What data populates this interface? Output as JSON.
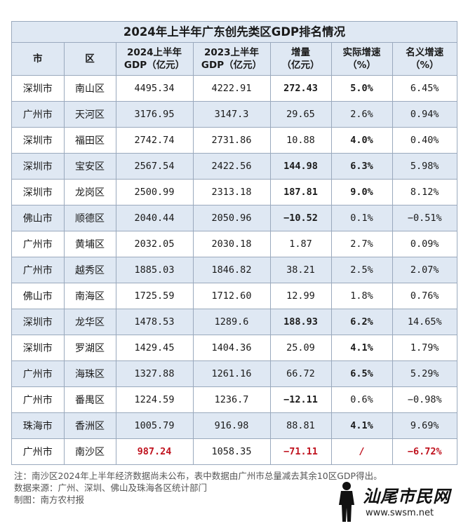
{
  "title": "2024年上半年广东创先类区GDP排名情况",
  "headers": {
    "city": "市",
    "district": "区",
    "gdp2024": [
      "2024上半年",
      "GDP（亿元）"
    ],
    "gdp2023": [
      "2023上半年",
      "GDP（亿元）"
    ],
    "increase": [
      "增量",
      "（亿元）"
    ],
    "real_growth": [
      "实际增速",
      "（%）"
    ],
    "nominal_growth": [
      "名义增速",
      "（%）"
    ]
  },
  "rows": [
    {
      "city": "深圳市",
      "district": "南山区",
      "gdp2024": "4495.34",
      "gdp2023": "4222.91",
      "increase": "272.43",
      "real": "5.0%",
      "nominal": "6.45%",
      "inc_bold": true,
      "real_bold": true
    },
    {
      "city": "广州市",
      "district": "天河区",
      "gdp2024": "3176.95",
      "gdp2023": "3147.3",
      "increase": "29.65",
      "real": "2.6%",
      "nominal": "0.94%"
    },
    {
      "city": "深圳市",
      "district": "福田区",
      "gdp2024": "2742.74",
      "gdp2023": "2731.86",
      "increase": "10.88",
      "real": "4.0%",
      "nominal": "0.40%",
      "real_bold": true
    },
    {
      "city": "深圳市",
      "district": "宝安区",
      "gdp2024": "2567.54",
      "gdp2023": "2422.56",
      "increase": "144.98",
      "real": "6.3%",
      "nominal": "5.98%",
      "inc_bold": true,
      "real_bold": true
    },
    {
      "city": "深圳市",
      "district": "龙岗区",
      "gdp2024": "2500.99",
      "gdp2023": "2313.18",
      "increase": "187.81",
      "real": "9.0%",
      "nominal": "8.12%",
      "inc_bold": true,
      "real_bold": true
    },
    {
      "city": "佛山市",
      "district": "顺德区",
      "gdp2024": "2040.44",
      "gdp2023": "2050.96",
      "increase": "−10.52",
      "real": "0.1%",
      "nominal": "−0.51%",
      "inc_bold": true
    },
    {
      "city": "广州市",
      "district": "黄埔区",
      "gdp2024": "2032.05",
      "gdp2023": "2030.18",
      "increase": "1.87",
      "real": "2.7%",
      "nominal": "0.09%"
    },
    {
      "city": "广州市",
      "district": "越秀区",
      "gdp2024": "1885.03",
      "gdp2023": "1846.82",
      "increase": "38.21",
      "real": "2.5%",
      "nominal": "2.07%"
    },
    {
      "city": "佛山市",
      "district": "南海区",
      "gdp2024": "1725.59",
      "gdp2023": "1712.60",
      "increase": "12.99",
      "real": "1.8%",
      "nominal": "0.76%"
    },
    {
      "city": "深圳市",
      "district": "龙华区",
      "gdp2024": "1478.53",
      "gdp2023": "1289.6",
      "increase": "188.93",
      "real": "6.2%",
      "nominal": "14.65%",
      "inc_bold": true,
      "real_bold": true
    },
    {
      "city": "深圳市",
      "district": "罗湖区",
      "gdp2024": "1429.45",
      "gdp2023": "1404.36",
      "increase": "25.09",
      "real": "4.1%",
      "nominal": "1.79%",
      "real_bold": true
    },
    {
      "city": "广州市",
      "district": "海珠区",
      "gdp2024": "1327.88",
      "gdp2023": "1261.16",
      "increase": "66.72",
      "real": "6.5%",
      "nominal": "5.29%",
      "real_bold": true
    },
    {
      "city": "广州市",
      "district": "番禺区",
      "gdp2024": "1224.59",
      "gdp2023": "1236.7",
      "increase": "−12.11",
      "real": "0.6%",
      "nominal": "−0.98%",
      "inc_bold": true
    },
    {
      "city": "珠海市",
      "district": "香洲区",
      "gdp2024": "1005.79",
      "gdp2023": "916.98",
      "increase": "88.81",
      "real": "4.1%",
      "nominal": "9.69%",
      "real_bold": true
    },
    {
      "city": "广州市",
      "district": "南沙区",
      "gdp2024": "987.24",
      "gdp2023": "1058.35",
      "increase": "−71.11",
      "real": "/",
      "nominal": "−6.72%",
      "gdp_red": true,
      "inc_red": true,
      "real_red": true,
      "nom_red": true
    }
  ],
  "notes": [
    "注：南沙区2024年上半年经济数据尚未公布，表中数据由广州市总量减去其余10区GDP得出。",
    "数据来源：广州、深圳、佛山及珠海各区统计部门",
    "制图：南方农村报"
  ],
  "watermark": {
    "name": "汕尾市民网",
    "url": "www.swsm.net"
  }
}
